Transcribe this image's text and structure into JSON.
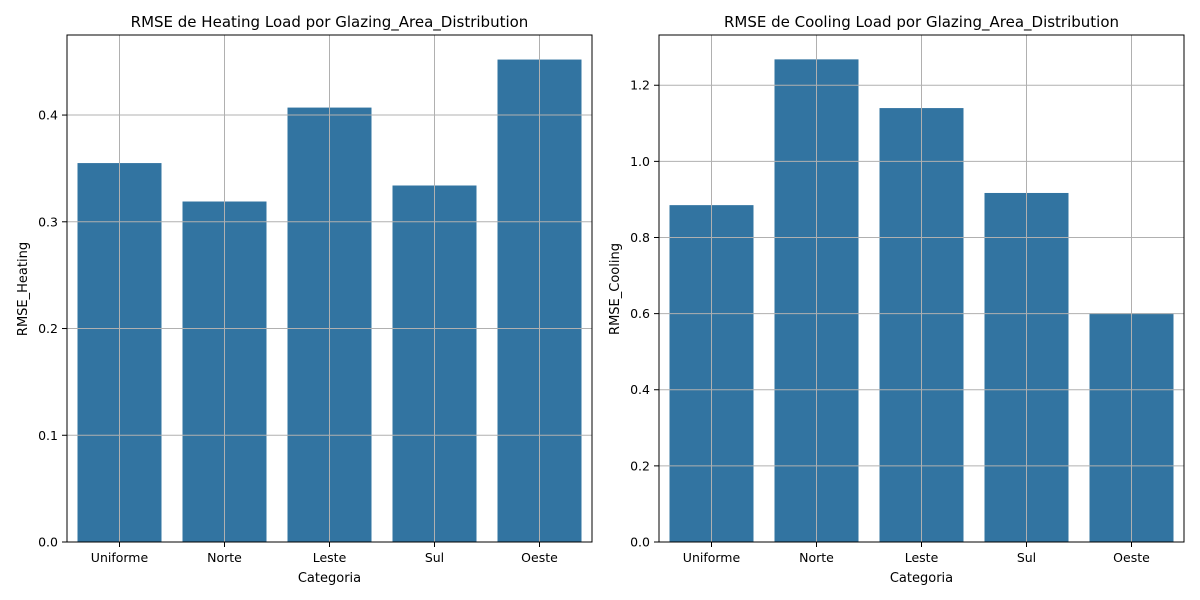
{
  "colors": {
    "bar": "#3274a1",
    "grid": "#b0b0b0",
    "axis": "#000000"
  },
  "chart_data": [
    {
      "type": "bar",
      "title": "RMSE de Heating Load por Glazing_Area_Distribution",
      "xlabel": "Categoria",
      "ylabel": "RMSE_Heating",
      "categories": [
        "Uniforme",
        "Norte",
        "Leste",
        "Sul",
        "Oeste"
      ],
      "values": [
        0.355,
        0.319,
        0.407,
        0.334,
        0.452
      ],
      "ylim": [
        0,
        0.475
      ],
      "yticks": [
        0.0,
        0.1,
        0.2,
        0.3,
        0.4
      ],
      "ytick_labels": [
        "0.0",
        "0.1",
        "0.2",
        "0.3",
        "0.4"
      ],
      "grid": true
    },
    {
      "type": "bar",
      "title": "RMSE de Cooling Load por Glazing_Area_Distribution",
      "xlabel": "Categoria",
      "ylabel": "RMSE_Cooling",
      "categories": [
        "Uniforme",
        "Norte",
        "Leste",
        "Sul",
        "Oeste"
      ],
      "values": [
        0.885,
        1.268,
        1.14,
        0.917,
        0.601
      ],
      "ylim": [
        0,
        1.332
      ],
      "yticks": [
        0.0,
        0.2,
        0.4,
        0.6,
        0.8,
        1.0,
        1.2
      ],
      "ytick_labels": [
        "0.0",
        "0.2",
        "0.4",
        "0.6",
        "0.8",
        "1.0",
        "1.2"
      ],
      "grid": true
    }
  ]
}
